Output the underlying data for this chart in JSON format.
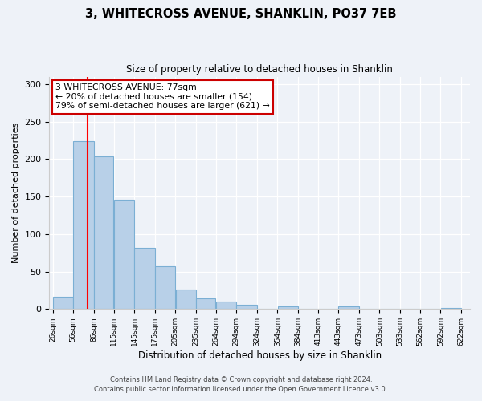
{
  "title": "3, WHITECROSS AVENUE, SHANKLIN, PO37 7EB",
  "subtitle": "Size of property relative to detached houses in Shanklin",
  "xlabel": "Distribution of detached houses by size in Shanklin",
  "ylabel": "Number of detached properties",
  "footnote1": "Contains HM Land Registry data © Crown copyright and database right 2024.",
  "footnote2": "Contains public sector information licensed under the Open Government Licence v3.0.",
  "bar_edges": [
    26,
    56,
    86,
    115,
    145,
    175,
    205,
    235,
    264,
    294,
    324,
    354,
    384,
    413,
    443,
    473,
    503,
    533,
    562,
    592,
    622
  ],
  "bar_heights": [
    16,
    224,
    204,
    146,
    82,
    57,
    26,
    14,
    10,
    6,
    0,
    4,
    0,
    0,
    4,
    0,
    0,
    0,
    0,
    1
  ],
  "tick_labels": [
    "26sqm",
    "56sqm",
    "86sqm",
    "115sqm",
    "145sqm",
    "175sqm",
    "205sqm",
    "235sqm",
    "264sqm",
    "294sqm",
    "324sqm",
    "354sqm",
    "384sqm",
    "413sqm",
    "443sqm",
    "473sqm",
    "503sqm",
    "533sqm",
    "562sqm",
    "592sqm",
    "622sqm"
  ],
  "bar_color": "#b8d0e8",
  "bar_edge_color": "#7bafd4",
  "red_line_x": 77,
  "annotation_title": "3 WHITECROSS AVENUE: 77sqm",
  "annotation_line1": "← 20% of detached houses are smaller (154)",
  "annotation_line2": "79% of semi-detached houses are larger (621) →",
  "annotation_box_color": "#ffffff",
  "annotation_box_edge": "#cc0000",
  "ylim": [
    0,
    310
  ],
  "xlim_left": 21,
  "xlim_right": 635,
  "background_color": "#eef2f8"
}
